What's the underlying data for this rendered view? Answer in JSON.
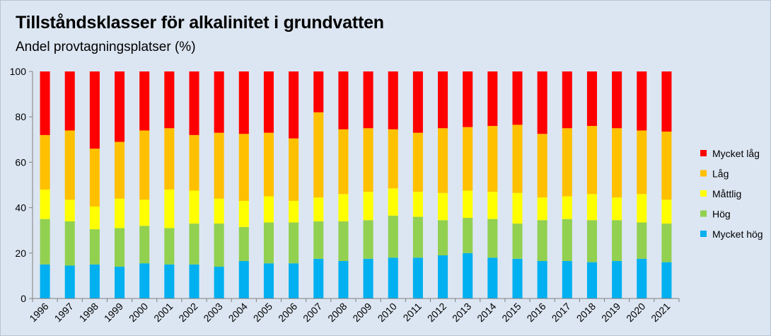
{
  "chart_data": {
    "type": "bar",
    "stacked": true,
    "title": "Tillståndsklasser för alkalinitet i grundvatten",
    "subtitle": "Andel provtagningsplatser (%)",
    "xlabel": "",
    "ylabel": "",
    "ylim": [
      0,
      100
    ],
    "yticks": [
      0,
      20,
      40,
      60,
      80,
      100
    ],
    "grid": false,
    "legend_position": "right",
    "categories": [
      "1996",
      "1997",
      "1998",
      "1999",
      "2000",
      "2001",
      "2002",
      "2003",
      "2004",
      "2005",
      "2006",
      "2007",
      "2008",
      "2009",
      "2010",
      "2011",
      "2012",
      "2013",
      "2014",
      "2015",
      "2016",
      "2017",
      "2018",
      "2019",
      "2020",
      "2021"
    ],
    "series": [
      {
        "name": "Mycket hög",
        "color": "#00b0f0",
        "values": [
          15,
          14.5,
          15,
          14,
          15.5,
          15,
          15,
          14,
          16.5,
          15.5,
          15.5,
          17.5,
          16.5,
          17.5,
          18,
          18,
          19,
          20,
          18,
          17.5,
          16.5,
          16.5,
          16,
          16.5,
          17.5,
          16
        ]
      },
      {
        "name": "Hög",
        "color": "#92d050",
        "values": [
          20,
          19.5,
          15.5,
          17,
          16.5,
          16,
          18,
          19,
          15,
          18,
          18,
          16.5,
          17.5,
          17,
          18.5,
          18,
          15.5,
          15.5,
          17,
          15.5,
          18,
          18.5,
          18.5,
          18,
          16,
          17
        ]
      },
      {
        "name": "Måttlig",
        "color": "#ffff00",
        "values": [
          13,
          9.5,
          10,
          13,
          11.5,
          17,
          14.5,
          11,
          11.5,
          11.5,
          9.5,
          10.5,
          12,
          12.5,
          12,
          11,
          12,
          12,
          12,
          13.5,
          10,
          10,
          11.5,
          10,
          12.5,
          10.5
        ]
      },
      {
        "name": "Låg",
        "color": "#ffc000",
        "values": [
          24,
          30.5,
          25.5,
          25,
          30.5,
          27,
          24.5,
          29,
          29.5,
          28,
          27.5,
          37.5,
          28.5,
          28,
          26,
          26,
          28.5,
          28,
          29,
          30,
          28,
          30,
          30,
          30.5,
          28,
          30
        ]
      },
      {
        "name": "Mycket låg",
        "color": "#ff0000",
        "values": [
          28,
          26,
          34,
          31,
          26,
          25,
          28,
          27,
          27.5,
          27,
          29.5,
          18,
          25.5,
          25,
          25.5,
          27,
          25,
          24.5,
          24,
          23.5,
          27.5,
          25,
          24,
          25,
          26,
          26.5
        ]
      }
    ]
  },
  "legend_order": [
    "Mycket låg",
    "Låg",
    "Måttlig",
    "Hög",
    "Mycket hög"
  ]
}
